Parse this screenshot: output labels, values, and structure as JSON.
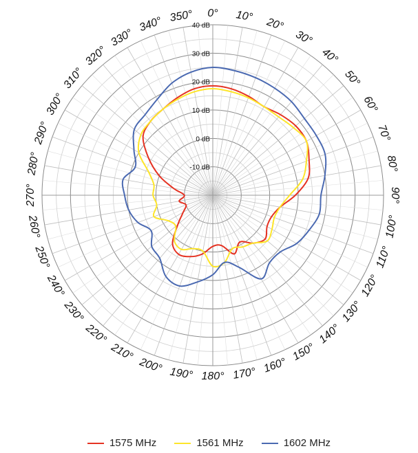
{
  "chart_data": {
    "type": "polar-line",
    "angle_ticks": [
      "0°",
      "10°",
      "20°",
      "30°",
      "40°",
      "50°",
      "60°",
      "70°",
      "80°",
      "90°",
      "100°",
      "110°",
      "120°",
      "130°",
      "140°",
      "150°",
      "160°",
      "170°",
      "180°",
      "190°",
      "200°",
      "210°",
      "220°",
      "230°",
      "240°",
      "250°",
      "260°",
      "270°",
      "280°",
      "290°",
      "300°",
      "310°",
      "320°",
      "330°",
      "340°",
      "350°"
    ],
    "radial_ticks": [
      "-10 dB",
      "0 dB",
      "10 dB",
      "20 dB",
      "30 dB",
      "40 dB"
    ],
    "radial_values": [
      -10,
      0,
      10,
      20,
      30,
      40
    ],
    "rlim": [
      -20,
      40
    ],
    "angle_step": 10,
    "grid": true,
    "legend_position": "bottom",
    "series": [
      {
        "name": "1575 MHz",
        "color": "#e53222",
        "theta": [
          0,
          10,
          20,
          30,
          40,
          50,
          60,
          70,
          80,
          90,
          100,
          110,
          120,
          130,
          140,
          150,
          160,
          170,
          180,
          190,
          200,
          210,
          220,
          230,
          240,
          250,
          260,
          270,
          280,
          290,
          300,
          310,
          320,
          330,
          340,
          350
        ],
        "values": [
          18.5,
          18,
          17,
          16,
          17,
          18,
          18,
          16,
          14,
          9,
          4,
          2,
          2,
          4,
          2,
          -1,
          2,
          -2,
          -2,
          1,
          3,
          4,
          2,
          -4,
          -8,
          -10,
          -8,
          -10,
          -6,
          0,
          6,
          12,
          14,
          15,
          16.5,
          18
        ]
      },
      {
        "name": "1561 MHz",
        "color": "#fde52a",
        "theta": [
          0,
          10,
          20,
          30,
          40,
          50,
          60,
          70,
          80,
          90,
          100,
          110,
          120,
          130,
          140,
          150,
          160,
          170,
          180,
          190,
          200,
          210,
          220,
          230,
          240,
          250,
          260,
          270,
          280,
          290,
          300,
          310,
          320,
          330,
          340,
          350
        ],
        "values": [
          17.5,
          17,
          16.5,
          16,
          16,
          17,
          18,
          15,
          12,
          7,
          4,
          3,
          4,
          5,
          2,
          1,
          0,
          4,
          5,
          0,
          0,
          2,
          1,
          -3,
          -2,
          2,
          0,
          1,
          1,
          4,
          10,
          13,
          14,
          15,
          16,
          17
        ]
      },
      {
        "name": "1602 MHz",
        "color": "#4a69b1",
        "theta": [
          0,
          10,
          20,
          30,
          40,
          50,
          60,
          70,
          80,
          90,
          100,
          110,
          120,
          130,
          140,
          150,
          160,
          170,
          180,
          190,
          200,
          210,
          220,
          230,
          240,
          250,
          260,
          270,
          280,
          290,
          300,
          310,
          320,
          330,
          340,
          350
        ],
        "values": [
          25,
          24.5,
          24,
          23.5,
          23,
          22,
          22,
          22,
          20,
          18,
          18,
          16,
          14,
          11,
          11,
          14,
          7,
          4,
          8,
          11,
          14,
          13,
          9,
          8,
          5,
          8,
          10,
          11,
          12,
          9,
          12,
          16,
          17,
          19,
          22,
          24
        ]
      }
    ]
  }
}
